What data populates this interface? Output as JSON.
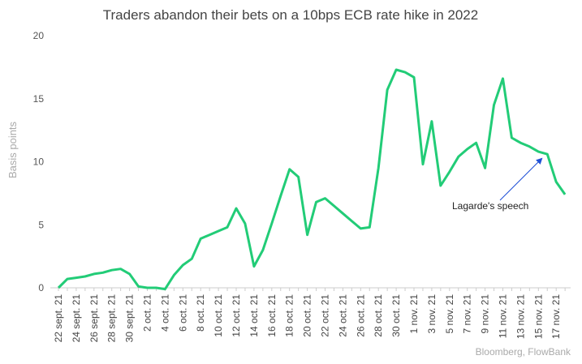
{
  "chart_data": {
    "type": "line",
    "title": "Traders abandon their bets on a 10bps ECB rate hike in 2022",
    "y_label": "Basis points",
    "source": "Bloomberg, FlowBank",
    "annotation": "Lagarde's speech",
    "categories": [
      "22 sept. 21",
      null,
      "24 sept. 21",
      null,
      "26 sept. 21",
      null,
      "28 sept. 21",
      null,
      "30 sept. 21",
      null,
      "2 oct. 21",
      null,
      "4 oct. 21",
      null,
      "6 oct. 21",
      null,
      "8 oct. 21",
      null,
      "10 oct. 21",
      null,
      "12 oct. 21",
      null,
      "14 oct. 21",
      null,
      "16 oct. 21",
      null,
      "18 oct. 21",
      null,
      "20 oct. 21",
      null,
      "22 oct. 21",
      null,
      "24 oct. 21",
      null,
      "26 oct. 21",
      null,
      "28 oct. 21",
      null,
      "30 oct. 21",
      null,
      "1 nov. 21",
      null,
      "3 nov. 21",
      null,
      "5 nov. 21",
      null,
      "7 nov. 21",
      null,
      "9 nov. 21",
      null,
      "11 nov. 21",
      null,
      "13 nov. 21",
      null,
      "15 nov. 21",
      null,
      "17 nov. 21",
      null
    ],
    "series": [
      {
        "name": "10bps ECB rate hike",
        "color": "#22cc77",
        "values": [
          0,
          0.7,
          0.8,
          0.9,
          1.1,
          1.2,
          1.4,
          1.5,
          1.1,
          0.1,
          0.0,
          0.0,
          -0.1,
          1.0,
          1.8,
          2.3,
          3.9,
          4.2,
          4.5,
          4.8,
          6.3,
          5.1,
          1.7,
          3.0,
          5.1,
          7.3,
          9.4,
          8.8,
          4.2,
          6.8,
          7.1,
          6.5,
          5.9,
          5.3,
          4.7,
          4.8,
          9.5,
          15.7,
          17.3,
          17.1,
          16.7,
          9.8,
          13.2,
          8.1,
          9.2,
          10.4,
          11.0,
          11.5,
          9.5,
          14.5,
          16.6,
          11.9,
          11.5,
          11.2,
          10.8,
          10.6,
          8.4,
          7.4
        ]
      }
    ],
    "ylim": [
      0,
      20
    ],
    "yticks": [
      0,
      5,
      10,
      15,
      20
    ],
    "grid": false
  }
}
